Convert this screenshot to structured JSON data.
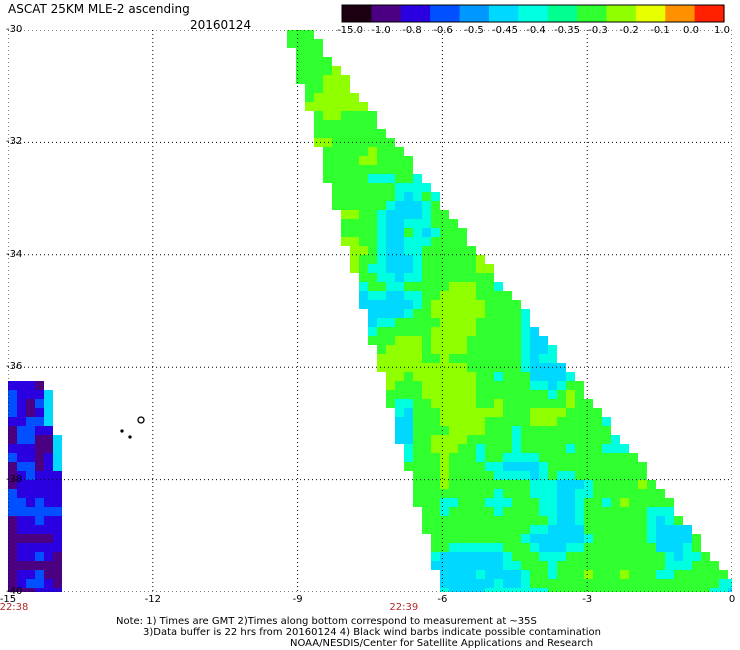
{
  "header": {
    "title": "ASCAT 25KM MLE-2 ascending",
    "date": "20160124"
  },
  "colorbar": {
    "labels": [
      "-15.0",
      "-1.0",
      "-0.8",
      "-0.6",
      "-0.5",
      "-0.45",
      "-0.4",
      "-0.35",
      "-0.3",
      "-0.2",
      "-0.1",
      "0.0",
      "1.0"
    ],
    "colors": [
      "#1a0010",
      "#4a0080",
      "#2a00e0",
      "#0050ff",
      "#0098ff",
      "#00d8ff",
      "#00ffe0",
      "#00ff90",
      "#30ff30",
      "#90ff00",
      "#e8ff00",
      "#ff9000",
      "#ff2000"
    ]
  },
  "axes": {
    "lat_ticks": [
      "-30",
      "-32",
      "-34",
      "-36",
      "-38",
      "-40"
    ],
    "lon_ticks": [
      "-15",
      "-12",
      "-9",
      "-6",
      "-3",
      "0"
    ],
    "lat_range": [
      -40,
      -30
    ],
    "lon_range": [
      -15,
      0
    ],
    "time_labels": [
      {
        "text": "22:38",
        "lon": -15
      },
      {
        "text": "22:39",
        "lon": -6.8
      }
    ]
  },
  "notes": {
    "line1": "Note: 1) Times are GMT 2)Times along bottom correspond to measurement at ~35S",
    "line2": "3)Data buffer is 22 hrs from 20160124 4) Black wind barbs indicate possible contamination",
    "line3": "NOAA/NESDIS/Center for Satellite Applications and Research"
  }
}
